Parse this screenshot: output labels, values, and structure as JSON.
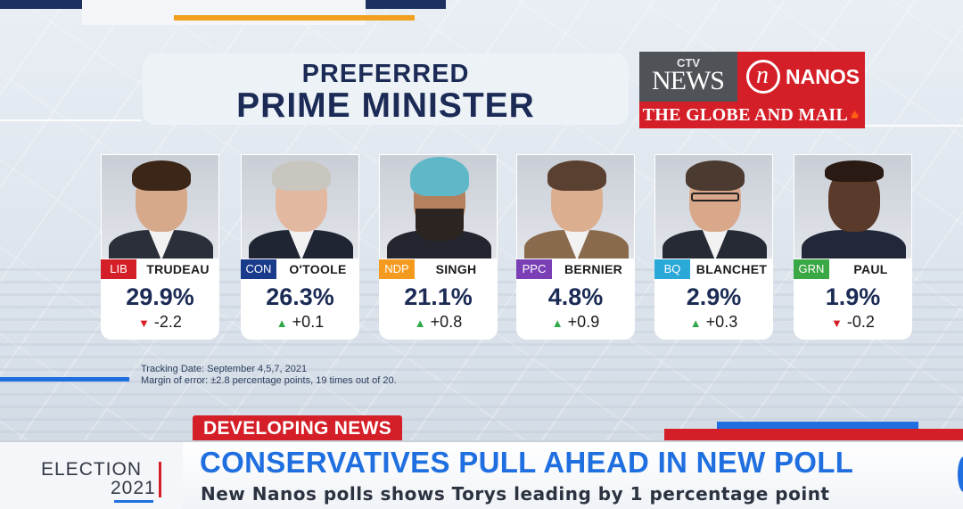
{
  "title": {
    "line1": "PREFERRED",
    "line2": "PRIME MINISTER"
  },
  "logos": {
    "ctv_small": "CTV",
    "ctv_news": "NEWS",
    "nanos": "NANOS",
    "nanos_mark": "n",
    "globe": "THE GLOBE AND MAIL"
  },
  "candidates": [
    {
      "party": "LIB",
      "party_color": "#d51f28",
      "name": "TRUDEAU",
      "pct": "29.9%",
      "direction": "down",
      "change": "-2.2"
    },
    {
      "party": "CON",
      "party_color": "#1a3a8c",
      "name": "O'TOOLE",
      "pct": "26.3%",
      "direction": "up",
      "change": "+0.1"
    },
    {
      "party": "NDP",
      "party_color": "#f39a1f",
      "name": "SINGH",
      "pct": "21.1%",
      "direction": "up",
      "change": "+0.8"
    },
    {
      "party": "PPC",
      "party_color": "#7a3fb5",
      "name": "BERNIER",
      "pct": "4.8%",
      "direction": "up",
      "change": "+0.9"
    },
    {
      "party": "BQ",
      "party_color": "#2aa8d8",
      "name": "BLANCHET",
      "pct": "2.9%",
      "direction": "up",
      "change": "+0.3"
    },
    {
      "party": "GRN",
      "party_color": "#3aa845",
      "name": "PAUL",
      "pct": "1.9%",
      "direction": "down",
      "change": "-0.2"
    }
  ],
  "footnote": {
    "tracking": "Tracking Date: September 4,5,7, 2021",
    "margin": "Margin of error: ±2.8 percentage points, 19 times out of 20."
  },
  "ticker": {
    "tag": "DEVELOPING NEWS",
    "election_word": "ELECTION",
    "election_year": "2021",
    "headline": "CONSERVATIVES PULL AHEAD IN NEW POLL",
    "subhead": "New Nanos polls shows Torys leading by 1 percentage point"
  },
  "colors": {
    "accent_blue": "#1f6fe0",
    "accent_red": "#d51f28",
    "navy": "#1b2b55"
  }
}
